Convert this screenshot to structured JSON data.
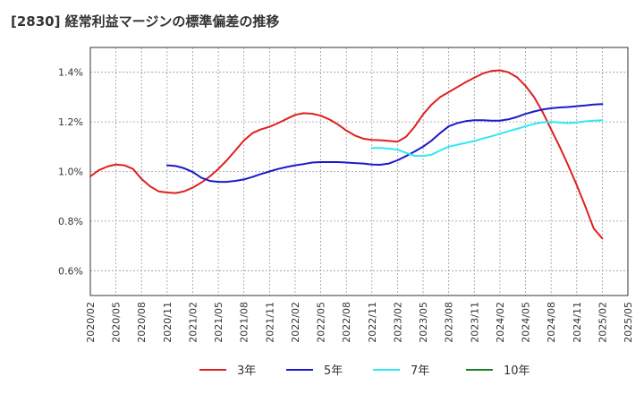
{
  "title": "[2830]  経常利益マージンの標準偏差の推移",
  "colors": {
    "3年": "#e02020",
    "5年": "#1a1acc",
    "7年": "#30e8f0",
    "10年": "#208020",
    "grid": "#999999",
    "axis": "#333333"
  },
  "chart_data": {
    "type": "line",
    "title": "[2830]  経常利益マージンの標準偏差の推移",
    "xlabel": "",
    "ylabel": "",
    "ylim": [
      0.5,
      1.5
    ],
    "yticks": [
      0.6,
      0.8,
      1.0,
      1.2,
      1.4
    ],
    "ytick_labels": [
      "0.6%",
      "0.8%",
      "1.0%",
      "1.2%",
      "1.4%"
    ],
    "xlim": [
      "2020-02",
      "2025-05"
    ],
    "xtick_labels": [
      "2020/02",
      "2020/05",
      "2020/08",
      "2020/11",
      "2021/02",
      "2021/05",
      "2021/08",
      "2021/11",
      "2022/02",
      "2022/05",
      "2022/08",
      "2022/11",
      "2023/02",
      "2023/05",
      "2023/08",
      "2023/11",
      "2024/02",
      "2024/05",
      "2024/08",
      "2024/11",
      "2025/02",
      "2025/05"
    ],
    "grid": true,
    "legend_position": "bottom",
    "series": [
      {
        "name": "3年",
        "color": "#e02020",
        "x": [
          "2020-02",
          "2020-03",
          "2020-04",
          "2020-05",
          "2020-06",
          "2020-07",
          "2020-08",
          "2020-09",
          "2020-10",
          "2020-11",
          "2020-12",
          "2021-01",
          "2021-02",
          "2021-03",
          "2021-04",
          "2021-05",
          "2021-06",
          "2021-07",
          "2021-08",
          "2021-09",
          "2021-10",
          "2021-11",
          "2021-12",
          "2022-01",
          "2022-02",
          "2022-03",
          "2022-04",
          "2022-05",
          "2022-06",
          "2022-07",
          "2022-08",
          "2022-09",
          "2022-10",
          "2022-11",
          "2022-12",
          "2023-01",
          "2023-02",
          "2023-03",
          "2023-04",
          "2023-05",
          "2023-06",
          "2023-07",
          "2023-08",
          "2023-09",
          "2023-10",
          "2023-11",
          "2023-12",
          "2024-01",
          "2024-02",
          "2024-03",
          "2024-04",
          "2024-05",
          "2024-06",
          "2024-07",
          "2024-08",
          "2024-09",
          "2024-10",
          "2024-11",
          "2024-12",
          "2025-01",
          "2025-02"
        ],
        "values": [
          0.98,
          1.005,
          1.02,
          1.028,
          1.025,
          1.01,
          0.97,
          0.94,
          0.92,
          0.915,
          0.913,
          0.92,
          0.935,
          0.955,
          0.98,
          1.01,
          1.045,
          1.085,
          1.125,
          1.155,
          1.17,
          1.18,
          1.195,
          1.212,
          1.228,
          1.235,
          1.233,
          1.225,
          1.21,
          1.19,
          1.165,
          1.145,
          1.132,
          1.127,
          1.126,
          1.123,
          1.12,
          1.14,
          1.18,
          1.23,
          1.27,
          1.3,
          1.32,
          1.34,
          1.36,
          1.378,
          1.395,
          1.405,
          1.408,
          1.4,
          1.38,
          1.345,
          1.3,
          1.24,
          1.17,
          1.1,
          1.025,
          0.945,
          0.86,
          0.77,
          0.73
        ]
      },
      {
        "name": "5年",
        "color": "#1a1acc",
        "x": [
          "2020-11",
          "2020-12",
          "2021-01",
          "2021-02",
          "2021-03",
          "2021-04",
          "2021-05",
          "2021-06",
          "2021-07",
          "2021-08",
          "2021-09",
          "2021-10",
          "2021-11",
          "2021-12",
          "2022-01",
          "2022-02",
          "2022-03",
          "2022-04",
          "2022-05",
          "2022-06",
          "2022-07",
          "2022-08",
          "2022-09",
          "2022-10",
          "2022-11",
          "2022-12",
          "2023-01",
          "2023-02",
          "2023-03",
          "2023-04",
          "2023-05",
          "2023-06",
          "2023-07",
          "2023-08",
          "2023-09",
          "2023-10",
          "2023-11",
          "2023-12",
          "2024-01",
          "2024-02",
          "2024-03",
          "2024-04",
          "2024-05",
          "2024-06",
          "2024-07",
          "2024-08",
          "2024-09",
          "2024-10",
          "2024-11",
          "2024-12",
          "2025-01",
          "2025-02"
        ],
        "values": [
          1.025,
          1.022,
          1.013,
          0.998,
          0.975,
          0.962,
          0.958,
          0.958,
          0.962,
          0.968,
          0.978,
          0.99,
          1.0,
          1.01,
          1.018,
          1.025,
          1.03,
          1.036,
          1.038,
          1.038,
          1.038,
          1.036,
          1.034,
          1.032,
          1.028,
          1.027,
          1.032,
          1.045,
          1.062,
          1.08,
          1.1,
          1.125,
          1.155,
          1.182,
          1.195,
          1.203,
          1.207,
          1.207,
          1.205,
          1.205,
          1.21,
          1.22,
          1.232,
          1.242,
          1.25,
          1.255,
          1.258,
          1.26,
          1.263,
          1.266,
          1.27,
          1.272
        ]
      },
      {
        "name": "7年",
        "color": "#30e8f0",
        "x": [
          "2022-11",
          "2022-12",
          "2023-01",
          "2023-02",
          "2023-03",
          "2023-04",
          "2023-05",
          "2023-06",
          "2023-07",
          "2023-08",
          "2023-09",
          "2023-10",
          "2023-11",
          "2023-12",
          "2024-01",
          "2024-02",
          "2024-03",
          "2024-04",
          "2024-05",
          "2024-06",
          "2024-07",
          "2024-08",
          "2024-09",
          "2024-10",
          "2024-11",
          "2024-12",
          "2025-01",
          "2025-02"
        ],
        "values": [
          1.095,
          1.095,
          1.092,
          1.088,
          1.075,
          1.063,
          1.062,
          1.068,
          1.085,
          1.1,
          1.108,
          1.115,
          1.123,
          1.133,
          1.142,
          1.152,
          1.162,
          1.172,
          1.182,
          1.192,
          1.198,
          1.2,
          1.197,
          1.195,
          1.198,
          1.202,
          1.205,
          1.207
        ]
      },
      {
        "name": "10年",
        "color": "#208020",
        "x": [],
        "values": []
      }
    ]
  }
}
